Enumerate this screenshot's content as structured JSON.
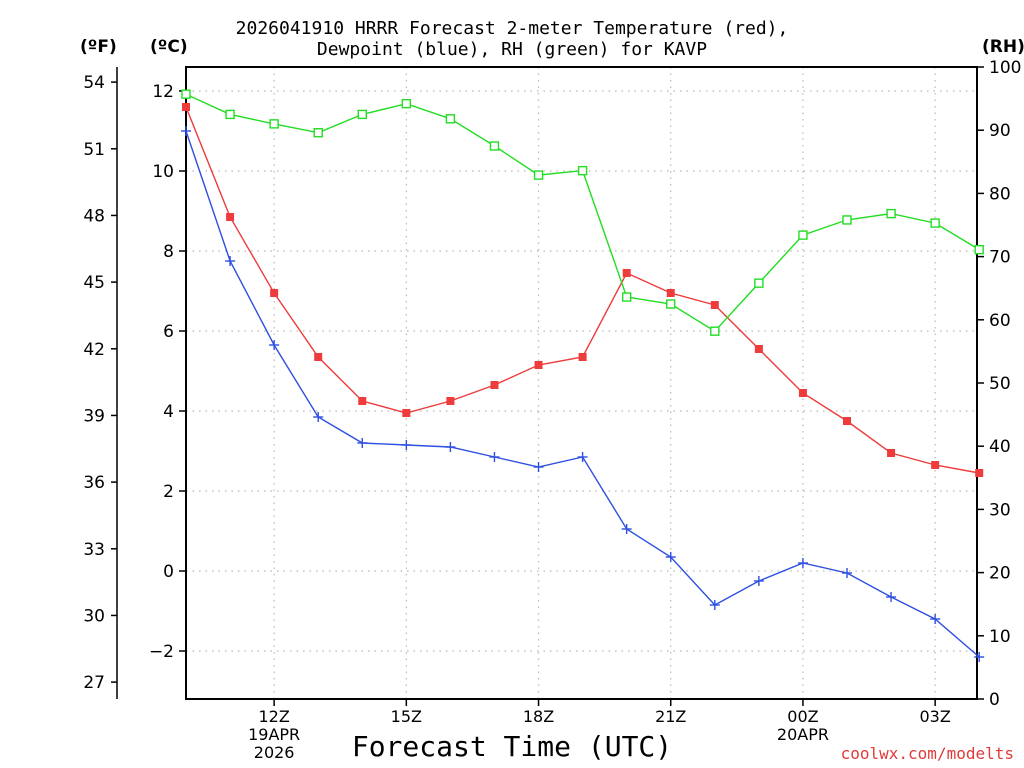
{
  "chart_data": {
    "type": "line",
    "title_line1": "2026041910 HRRR Forecast 2-meter Temperature (red),",
    "title_line2": "Dewpoint (blue), RH (green) for KAVP",
    "xlabel": "Forecast Time (UTC)",
    "credit": "coolwx.com/modelts",
    "units": {
      "f": "(ºF)",
      "c": "(ºC)",
      "rh": "(RH)"
    },
    "x_hours": [
      10,
      11,
      12,
      13,
      14,
      15,
      16,
      17,
      18,
      19,
      20,
      21,
      22,
      23,
      24,
      25,
      26,
      27,
      28
    ],
    "x_ticks": [
      {
        "hour": 12,
        "labels": [
          "12Z",
          "19APR",
          "2026"
        ]
      },
      {
        "hour": 15,
        "labels": [
          "15Z"
        ]
      },
      {
        "hour": 18,
        "labels": [
          "18Z"
        ]
      },
      {
        "hour": 21,
        "labels": [
          "21Z"
        ]
      },
      {
        "hour": 24,
        "labels": [
          "00Z",
          "20APR"
        ]
      },
      {
        "hour": 27,
        "labels": [
          "03Z"
        ]
      }
    ],
    "xlim": [
      10,
      27.95
    ],
    "ylim_c": [
      -3.2,
      12.6
    ],
    "ylim_rh": [
      0,
      100
    ],
    "yticks_c": [
      -2,
      0,
      2,
      4,
      6,
      8,
      10,
      12
    ],
    "yticks_f": [
      27,
      30,
      33,
      36,
      39,
      42,
      45,
      48,
      51,
      54
    ],
    "yticks_rh": [
      0,
      10,
      20,
      30,
      40,
      50,
      60,
      70,
      80,
      90,
      100
    ],
    "series": [
      {
        "name": "Temperature (°C)",
        "axis": "c",
        "color": "#ee3b3b",
        "marker": "filled-square",
        "values": [
          11.6,
          8.85,
          6.95,
          5.35,
          4.25,
          3.95,
          4.25,
          4.65,
          5.15,
          5.35,
          7.45,
          6.95,
          6.65,
          5.55,
          4.45,
          3.75,
          2.95,
          2.65,
          2.45
        ]
      },
      {
        "name": "Dewpoint (°C)",
        "axis": "c",
        "color": "#2d4fe0",
        "marker": "plus",
        "values": [
          11.0,
          7.75,
          5.65,
          3.85,
          3.2,
          3.15,
          3.1,
          2.85,
          2.6,
          2.85,
          1.05,
          0.35,
          -0.85,
          -0.25,
          0.2,
          -0.05,
          -0.65,
          -1.2,
          -2.15
        ]
      },
      {
        "name": "RH (%)",
        "axis": "rh",
        "color": "#22dd22",
        "marker": "open-square",
        "values": [
          95.7,
          92.5,
          91.0,
          89.6,
          92.5,
          94.2,
          91.8,
          87.5,
          82.9,
          83.6,
          63.6,
          62.5,
          58.2,
          65.8,
          73.4,
          75.8,
          76.8,
          75.3,
          71.1
        ]
      }
    ]
  }
}
